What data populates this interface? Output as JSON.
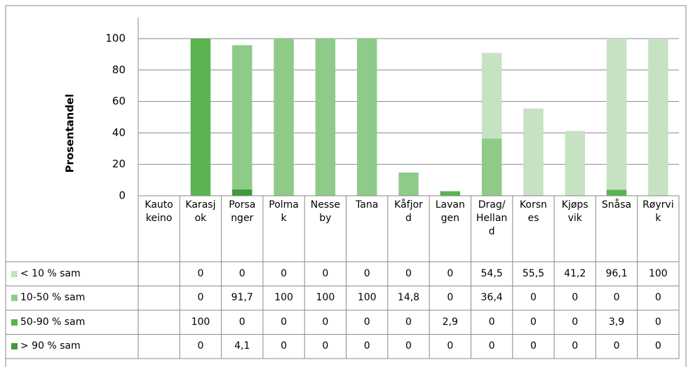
{
  "chart_data": {
    "type": "stacked_bar",
    "y_label": "Prosentandel",
    "categories": [
      "Kauto\nkeino",
      "Karasj\nok",
      "Porsa\nnger",
      "Polma\nk",
      "Nesse\nby",
      "Tana",
      "Kåfjor\nd",
      "Lavan\ngen",
      "Drag/\nHellan\nd",
      "Korsn\nes",
      "Kjøps\nvik",
      "Snåsa",
      "Røyrvi\nk"
    ],
    "series": [
      {
        "name": "< 10 % sam",
        "color": "#c6e2c3",
        "values": [
          null,
          0,
          0,
          0,
          0,
          0,
          0,
          0,
          54.5,
          55.5,
          41.2,
          96.1,
          100
        ],
        "value_labels": [
          null,
          "0",
          "0",
          "0",
          "0",
          "0",
          "0",
          "0",
          "54,5",
          "55,5",
          "41,2",
          "96,1",
          "100"
        ]
      },
      {
        "name": "10-50 % sam",
        "color": "#8fcb88",
        "values": [
          null,
          0,
          91.7,
          100,
          100,
          100,
          14.8,
          0,
          36.4,
          0,
          0,
          0,
          0
        ],
        "value_labels": [
          null,
          "0",
          "91,7",
          "100",
          "100",
          "100",
          "14,8",
          "0",
          "36,4",
          "0",
          "0",
          "0",
          "0"
        ]
      },
      {
        "name": "50-90 % sam",
        "color": "#5ab450",
        "values": [
          null,
          100,
          0,
          0,
          0,
          0,
          0,
          2.9,
          0,
          0,
          0,
          3.9,
          0
        ],
        "value_labels": [
          null,
          "100",
          "0",
          "0",
          "0",
          "0",
          "0",
          "2,9",
          "0",
          "0",
          "0",
          "3,9",
          "0"
        ]
      },
      {
        "name": "> 90 % sam",
        "color": "#3f9a3b",
        "values": [
          null,
          0,
          4.1,
          0,
          0,
          0,
          0,
          0,
          0,
          0,
          0,
          0,
          0
        ],
        "value_labels": [
          null,
          "0",
          "4,1",
          "0",
          "0",
          "0",
          "0",
          "0",
          "0",
          "0",
          "0",
          "0",
          "0"
        ]
      }
    ],
    "ylim": [
      0,
      100
    ],
    "yticks": [
      0,
      20,
      40,
      60,
      80,
      100
    ],
    "grid": true
  }
}
